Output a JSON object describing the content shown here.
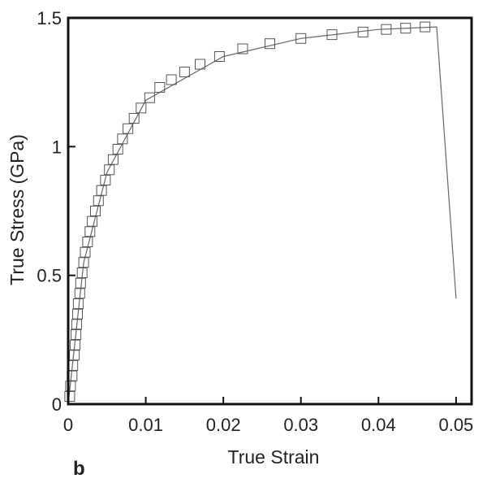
{
  "chart_data": {
    "type": "scatter",
    "title": "",
    "xlabel": "True Strain",
    "ylabel": "True Stress (GPa)",
    "panel_label": "b",
    "xlim": [
      0,
      0.052
    ],
    "ylim": [
      0,
      1.5
    ],
    "x_ticks": [
      0,
      0.01,
      0.02,
      0.03,
      0.04,
      0.05
    ],
    "x_tick_labels": [
      "0",
      "0.01",
      "0.02",
      "0.03",
      "0.04",
      "0.05"
    ],
    "y_ticks": [
      0,
      0.5,
      1,
      1.5
    ],
    "y_tick_labels": [
      "0",
      "0.5",
      "1",
      "1.5"
    ],
    "grid": false,
    "legend": "none",
    "colors": {
      "marker_stroke": "#555555",
      "line": "#666666",
      "frame": "#111111"
    },
    "series": [
      {
        "kind": "markers",
        "marker": "open-square",
        "points": [
          [
            0.0002,
            0.03
          ],
          [
            0.0003,
            0.07
          ],
          [
            0.0005,
            0.11
          ],
          [
            0.0006,
            0.15
          ],
          [
            0.0008,
            0.19
          ],
          [
            0.0009,
            0.23
          ],
          [
            0.001,
            0.27
          ],
          [
            0.0011,
            0.31
          ],
          [
            0.0012,
            0.35
          ],
          [
            0.0013,
            0.39
          ],
          [
            0.0015,
            0.43
          ],
          [
            0.0016,
            0.47
          ],
          [
            0.0018,
            0.51
          ],
          [
            0.002,
            0.55
          ],
          [
            0.0022,
            0.59
          ],
          [
            0.0025,
            0.63
          ],
          [
            0.0028,
            0.67
          ],
          [
            0.0031,
            0.71
          ],
          [
            0.0035,
            0.75
          ],
          [
            0.0039,
            0.79
          ],
          [
            0.0043,
            0.83
          ],
          [
            0.0048,
            0.87
          ],
          [
            0.0053,
            0.91
          ],
          [
            0.0058,
            0.95
          ],
          [
            0.0064,
            0.99
          ],
          [
            0.007,
            1.03
          ],
          [
            0.0077,
            1.07
          ],
          [
            0.0085,
            1.11
          ],
          [
            0.0094,
            1.15
          ],
          [
            0.0105,
            1.19
          ],
          [
            0.0118,
            1.23
          ],
          [
            0.0133,
            1.26
          ],
          [
            0.015,
            1.29
          ],
          [
            0.017,
            1.32
          ],
          [
            0.0195,
            1.35
          ],
          [
            0.0225,
            1.38
          ],
          [
            0.026,
            1.4
          ],
          [
            0.03,
            1.42
          ],
          [
            0.034,
            1.435
          ],
          [
            0.038,
            1.445
          ],
          [
            0.041,
            1.455
          ],
          [
            0.0435,
            1.46
          ],
          [
            0.046,
            1.465
          ]
        ]
      },
      {
        "kind": "line",
        "points": [
          [
            0.0,
            0.0
          ],
          [
            0.002,
            0.55
          ],
          [
            0.005,
            0.9
          ],
          [
            0.01,
            1.18
          ],
          [
            0.02,
            1.35
          ],
          [
            0.03,
            1.42
          ],
          [
            0.04,
            1.455
          ],
          [
            0.0475,
            1.465
          ],
          [
            0.05,
            0.41
          ]
        ]
      }
    ]
  }
}
